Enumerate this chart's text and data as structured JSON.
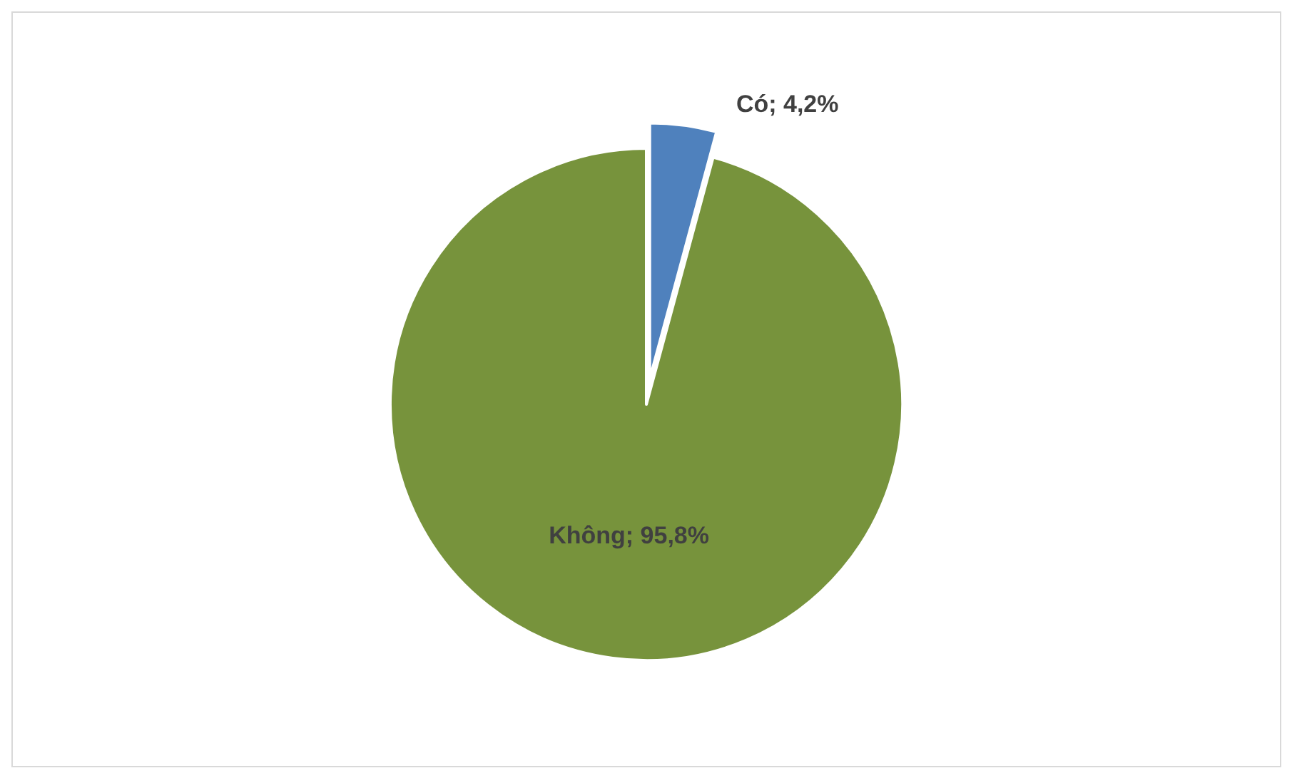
{
  "chart_data": {
    "type": "pie",
    "categories": [
      "Có",
      "Không"
    ],
    "values": [
      4.2,
      95.8
    ],
    "colors": [
      "#4f81bd",
      "#77933c"
    ],
    "value_labels": [
      "4,2%",
      "95,8%"
    ]
  }
}
